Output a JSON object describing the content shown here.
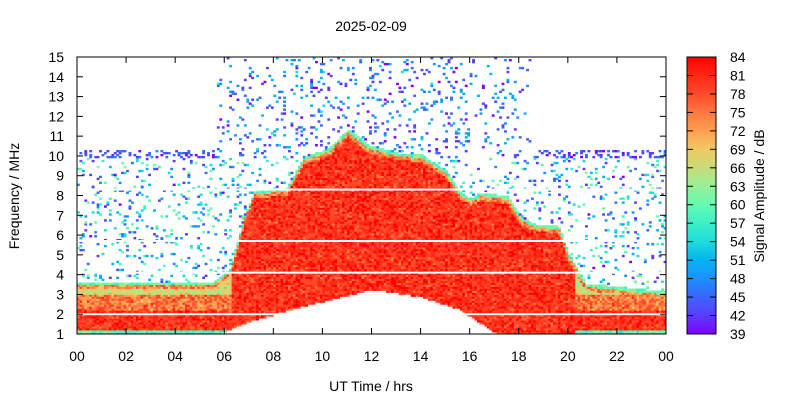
{
  "chart_data": {
    "type": "heatmap",
    "title": "2025-02-09",
    "xlabel": "UT Time / hrs",
    "ylabel": "Frequency / MHz",
    "xlim": [
      0,
      24
    ],
    "ylim": [
      1,
      15
    ],
    "x_tick_labels": [
      "00",
      "02",
      "04",
      "06",
      "08",
      "10",
      "12",
      "14",
      "16",
      "18",
      "20",
      "22",
      "00"
    ],
    "y_ticks": [
      1,
      2,
      3,
      4,
      5,
      6,
      7,
      8,
      9,
      10,
      11,
      12,
      13,
      14,
      15
    ],
    "colorbar": {
      "label": "Signal Amplitude / dB",
      "range": [
        39,
        84
      ],
      "ticks": [
        39,
        42,
        45,
        48,
        51,
        54,
        57,
        60,
        63,
        66,
        69,
        72,
        75,
        78,
        81,
        84
      ],
      "colors": [
        "#7f00ff",
        "#5a3cff",
        "#3c64ff",
        "#1e90ff",
        "#00b4f0",
        "#1edcdc",
        "#3cf0c8",
        "#64fab4",
        "#96f096",
        "#c8dc78",
        "#f0c864",
        "#ffa050",
        "#ff7840",
        "#ff4a2a",
        "#ff2814",
        "#ff0000"
      ]
    },
    "envelope_upper_MHz": [
      [
        0,
        3.6
      ],
      [
        5.5,
        3.6
      ],
      [
        6.2,
        4.3
      ],
      [
        6.8,
        7.0
      ],
      [
        7.2,
        8.2
      ],
      [
        8.5,
        8.3
      ],
      [
        9.2,
        9.9
      ],
      [
        10.2,
        10.3
      ],
      [
        11.0,
        11.3
      ],
      [
        11.8,
        10.5
      ],
      [
        13.0,
        10.1
      ],
      [
        14.0,
        10.0
      ],
      [
        15.0,
        9.2
      ],
      [
        15.5,
        8.2
      ],
      [
        16.0,
        7.8
      ],
      [
        16.4,
        8.1
      ],
      [
        17.5,
        7.9
      ],
      [
        18.0,
        6.9
      ],
      [
        18.6,
        6.5
      ],
      [
        19.6,
        6.4
      ],
      [
        20.0,
        5.0
      ],
      [
        20.7,
        3.5
      ],
      [
        24,
        3.1
      ]
    ],
    "envelope_lower_MHz": [
      [
        0,
        1.0
      ],
      [
        5.8,
        1.0
      ],
      [
        6.8,
        1.5
      ],
      [
        9.0,
        2.3
      ],
      [
        12.0,
        3.2
      ],
      [
        14.0,
        2.8
      ],
      [
        15.5,
        2.2
      ],
      [
        16.5,
        1.4
      ],
      [
        17.0,
        1.0
      ],
      [
        24,
        1.0
      ]
    ],
    "white_horizontal_bands_MHz": [
      2.0,
      4.1,
      5.7,
      8.3
    ],
    "peak_amplitude_dB": 84
  }
}
